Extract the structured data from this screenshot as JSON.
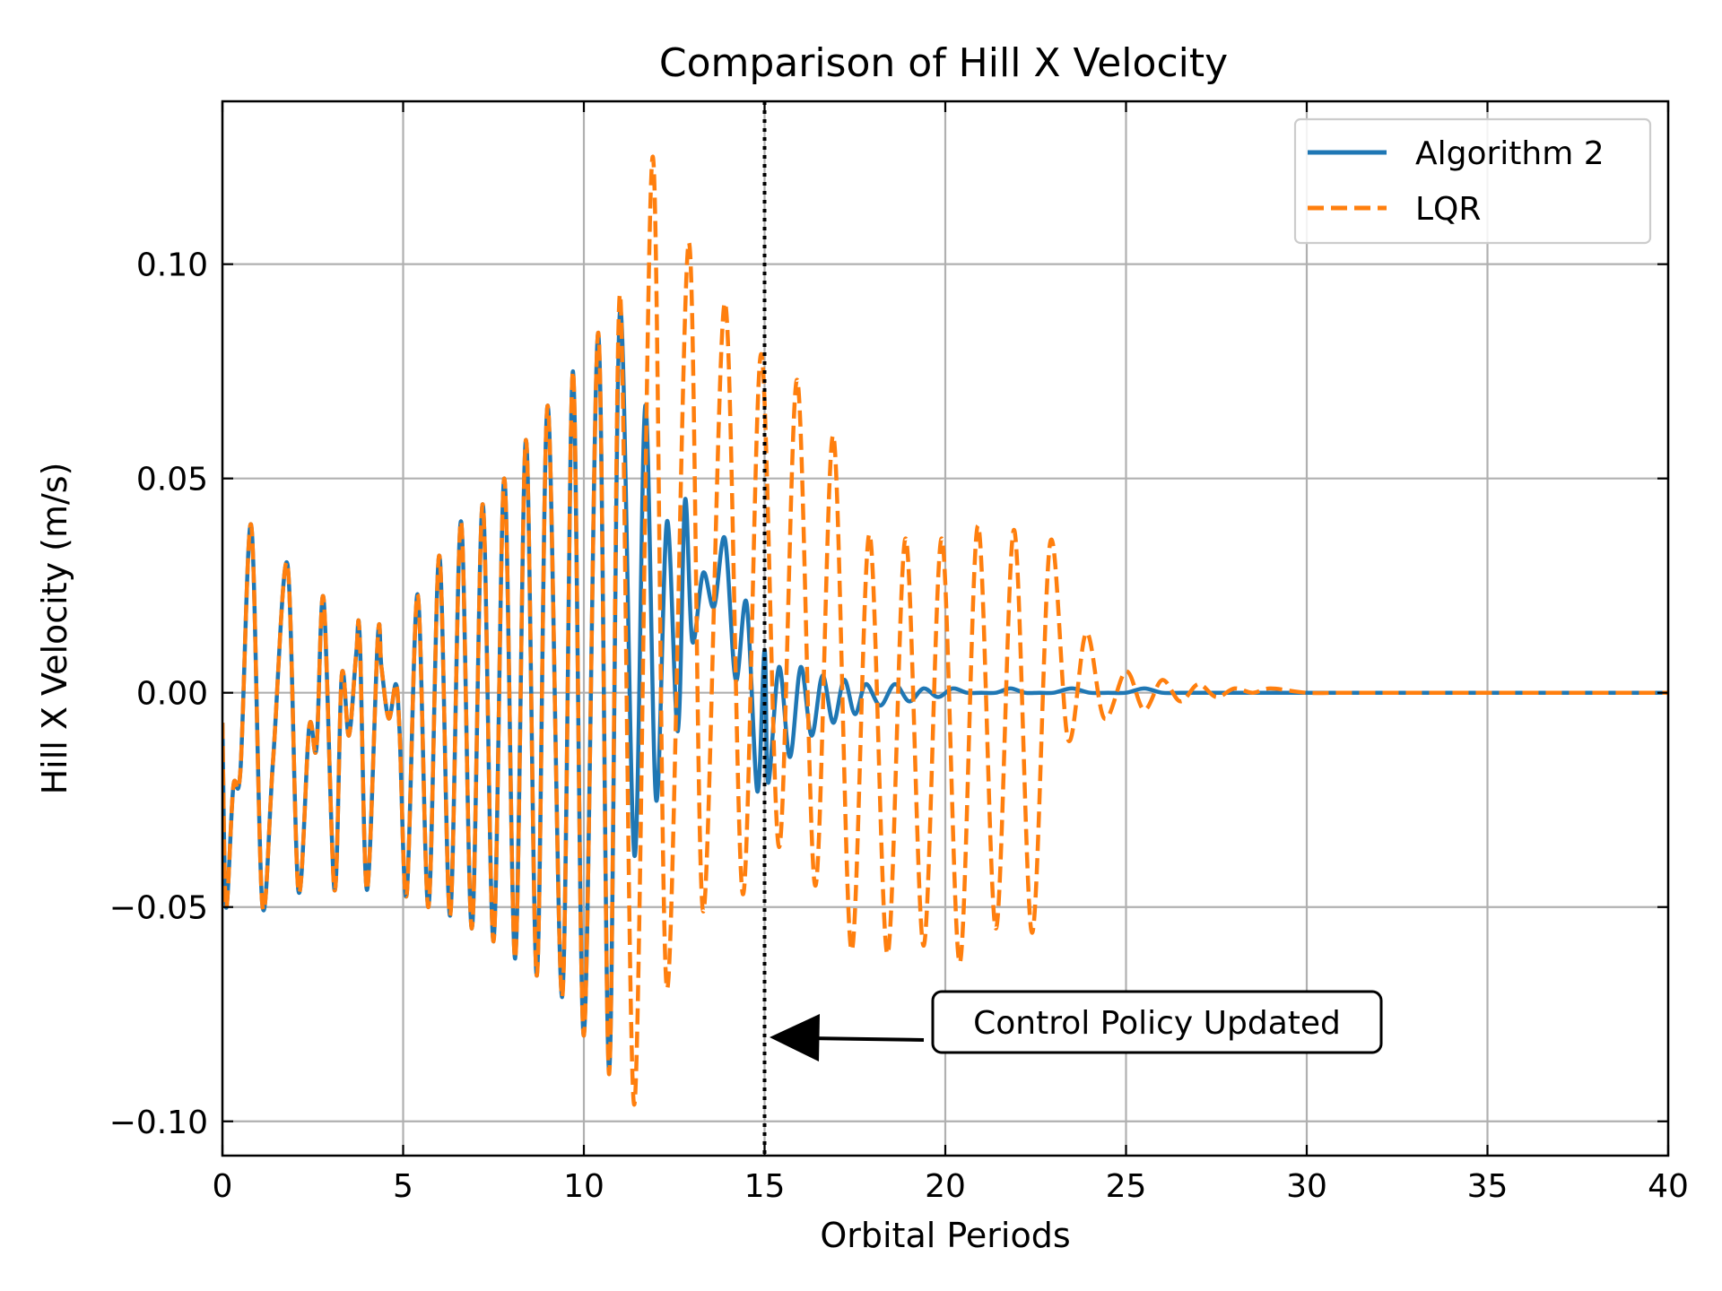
{
  "chart_data": {
    "type": "line",
    "title": "Comparison of Hill X Velocity",
    "xlabel": "Orbital Periods",
    "ylabel": "Hill X Velocity (m/s)",
    "xlim": [
      0,
      40
    ],
    "ylim": [
      -0.108,
      0.138
    ],
    "grid": true,
    "legend_position": "top-right",
    "xticks": [
      {
        "value": 0,
        "label": "0"
      },
      {
        "value": 5,
        "label": "5"
      },
      {
        "value": 10,
        "label": "10"
      },
      {
        "value": 15,
        "label": "15"
      },
      {
        "value": 20,
        "label": "20"
      },
      {
        "value": 25,
        "label": "25"
      },
      {
        "value": 30,
        "label": "30"
      },
      {
        "value": 35,
        "label": "35"
      },
      {
        "value": 40,
        "label": "40"
      }
    ],
    "yticks": [
      {
        "value": -0.1,
        "label": "−0.10"
      },
      {
        "value": -0.05,
        "label": "−0.05"
      },
      {
        "value": 0.0,
        "label": "0.00"
      },
      {
        "value": 0.05,
        "label": "0.05"
      },
      {
        "value": 0.1,
        "label": "0.10"
      }
    ],
    "series": [
      {
        "name": "Algorithm 2",
        "color": "#1f77b4",
        "style": "solid",
        "x": [
          0,
          0.1,
          0.3,
          0.5,
          0.8,
          1.1,
          1.4,
          1.8,
          2.1,
          2.4,
          2.6,
          2.8,
          3.1,
          3.3,
          3.5,
          3.7,
          3.8,
          4.0,
          4.3,
          4.4,
          4.6,
          4.8,
          4.9,
          5.1,
          5.4,
          5.7,
          6.0,
          6.3,
          6.6,
          6.9,
          7.2,
          7.5,
          7.8,
          8.1,
          8.4,
          8.7,
          9.0,
          9.4,
          9.7,
          10.0,
          10.4,
          10.7,
          11.0,
          11.4,
          11.7,
          12.0,
          12.3,
          12.6,
          12.8,
          13.0,
          13.3,
          13.6,
          13.9,
          14.2,
          14.5,
          14.8,
          15.0,
          15.1,
          15.4,
          15.7,
          16.0,
          16.3,
          16.6,
          16.9,
          17.2,
          17.5,
          17.8,
          18.2,
          18.6,
          19.0,
          19.4,
          19.8,
          20.2,
          20.6,
          21.0,
          21.4,
          21.8,
          22.2,
          22.6,
          23.0,
          23.5,
          24.0,
          24.5,
          25.0,
          25.5,
          26.0,
          26.5,
          27.0,
          27.5,
          28.0,
          29.0,
          30.0,
          31.0,
          32.0,
          33.0,
          34.0,
          35.0,
          36.0,
          37.0,
          38.0,
          39.0,
          40.0
        ],
        "y": [
          -0.007,
          -0.05,
          -0.022,
          -0.018,
          0.039,
          -0.049,
          -0.016,
          0.03,
          -0.046,
          -0.008,
          -0.013,
          0.022,
          -0.046,
          0.004,
          -0.01,
          0.009,
          0.013,
          -0.046,
          0.013,
          0.006,
          -0.006,
          0.002,
          -0.009,
          -0.047,
          0.023,
          -0.05,
          0.032,
          -0.052,
          0.04,
          -0.055,
          0.044,
          -0.058,
          0.05,
          -0.062,
          0.059,
          -0.066,
          0.067,
          -0.071,
          0.075,
          -0.08,
          0.084,
          -0.088,
          0.089,
          -0.038,
          0.067,
          -0.025,
          0.04,
          -0.009,
          0.045,
          0.012,
          0.028,
          0.02,
          0.036,
          0.003,
          0.021,
          -0.023,
          0.01,
          -0.021,
          0.006,
          -0.015,
          0.006,
          -0.01,
          0.004,
          -0.007,
          0.003,
          -0.005,
          0.002,
          -0.003,
          0.002,
          -0.002,
          0.001,
          -0.001,
          0.001,
          0.0,
          0.0,
          0.0,
          0.001,
          0.0,
          0.0,
          0.0,
          0.001,
          0.0,
          0.0,
          0.0,
          0.001,
          0.0,
          0.0,
          0.0,
          0.0,
          0.0,
          0.0,
          0.0,
          0.0,
          0.0,
          0.0,
          0.0,
          0.0,
          0.0,
          0.0,
          0.0,
          0.0,
          0.0
        ]
      },
      {
        "name": "LQR",
        "color": "#ff7f0e",
        "style": "dashed",
        "x": [
          0,
          0.1,
          0.3,
          0.5,
          0.8,
          1.1,
          1.4,
          1.8,
          2.1,
          2.4,
          2.6,
          2.8,
          3.1,
          3.3,
          3.5,
          3.7,
          3.8,
          4.0,
          4.3,
          4.4,
          4.6,
          4.8,
          4.9,
          5.1,
          5.4,
          5.7,
          6.0,
          6.3,
          6.6,
          6.9,
          7.2,
          7.5,
          7.8,
          8.1,
          8.4,
          8.7,
          9.0,
          9.4,
          9.7,
          10.0,
          10.4,
          10.7,
          11.0,
          11.4,
          11.9,
          12.3,
          12.9,
          13.3,
          13.9,
          14.4,
          14.9,
          15.4,
          15.9,
          16.4,
          16.9,
          17.4,
          17.9,
          18.4,
          18.9,
          19.4,
          19.9,
          20.4,
          20.9,
          21.4,
          21.9,
          22.4,
          22.9,
          23.4,
          23.9,
          24.4,
          25.0,
          25.5,
          26.0,
          26.5,
          27.0,
          27.5,
          28.0,
          28.5,
          29.0,
          30.0,
          31.0,
          32.0,
          33.0,
          34.0,
          35.0,
          36.0,
          37.0,
          38.0,
          39.0,
          40.0
        ],
        "y": [
          -0.007,
          -0.05,
          -0.022,
          -0.018,
          0.039,
          -0.049,
          -0.016,
          0.03,
          -0.046,
          -0.008,
          -0.013,
          0.022,
          -0.046,
          0.004,
          -0.01,
          0.009,
          0.013,
          -0.046,
          0.013,
          0.006,
          -0.006,
          0.002,
          -0.009,
          -0.047,
          0.023,
          -0.05,
          0.032,
          -0.052,
          0.04,
          -0.055,
          0.044,
          -0.058,
          0.05,
          -0.062,
          0.059,
          -0.066,
          0.067,
          -0.071,
          0.075,
          -0.08,
          0.084,
          -0.089,
          0.093,
          -0.096,
          0.125,
          -0.069,
          0.105,
          -0.051,
          0.091,
          -0.047,
          0.079,
          -0.036,
          0.073,
          -0.045,
          0.06,
          -0.06,
          0.037,
          -0.061,
          0.036,
          -0.059,
          0.036,
          -0.063,
          0.039,
          -0.055,
          0.038,
          -0.056,
          0.035,
          -0.011,
          0.014,
          -0.006,
          0.005,
          -0.004,
          0.003,
          -0.002,
          0.002,
          -0.001,
          0.001,
          0.0,
          0.001,
          0.0,
          0.0,
          0.0,
          0.0,
          0.0,
          0.0,
          0.0,
          0.0,
          0.0,
          0.0,
          0.0
        ]
      }
    ],
    "vline": {
      "x": 15,
      "style": "dotted",
      "color": "#000000"
    },
    "annotation": {
      "text": "Control Policy Updated",
      "x_target": 15,
      "y_target": -0.081
    }
  }
}
